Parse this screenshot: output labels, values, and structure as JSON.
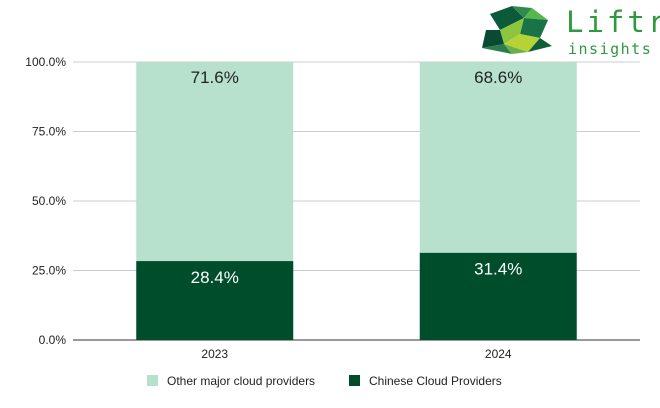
{
  "logo": {
    "brand": "Liftr",
    "tagline": "insights"
  },
  "chart_data": {
    "type": "bar",
    "stacked": true,
    "categories": [
      "2023",
      "2024"
    ],
    "series": [
      {
        "name": "Chinese Cloud Providers",
        "values": [
          28.4,
          31.4
        ],
        "labels": [
          "28.4%",
          "31.4%"
        ],
        "color": "#004d2c",
        "label_color": "#ffffff"
      },
      {
        "name": "Other major cloud providers",
        "values": [
          71.6,
          68.6
        ],
        "labels": [
          "71.6%",
          "68.6%"
        ],
        "color": "#b7e1cd",
        "label_color": "#222222"
      }
    ],
    "ylim": [
      0,
      100
    ],
    "yticks": [
      "0.0%",
      "25.0%",
      "50.0%",
      "75.0%",
      "100.0%"
    ],
    "ytick_values": [
      0,
      25,
      50,
      75,
      100
    ],
    "grid": true,
    "legend": {
      "position": "bottom",
      "order": [
        "Other major cloud providers",
        "Chinese Cloud Providers"
      ]
    },
    "title": "",
    "xlabel": "",
    "ylabel": ""
  }
}
